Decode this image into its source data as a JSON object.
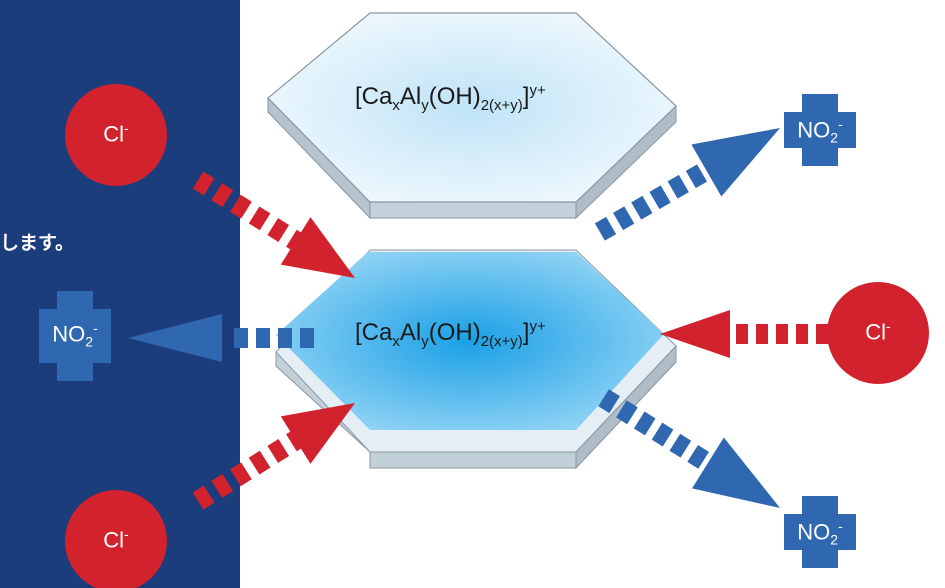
{
  "caption": "します。",
  "layer_top": {
    "formula": {
      "base": "[Ca",
      "x": "x",
      "al": "Al",
      "y": "y",
      "oh": "(OH)",
      "sub2": "2(x+y)",
      "close": "]",
      "charge": "y+"
    }
  },
  "layer_main": {
    "formula": {
      "base": "[Ca",
      "x": "x",
      "al": "Al",
      "y": "y",
      "oh": "(OH)",
      "sub2": "2(x+y)",
      "close": "]",
      "charge": "y+"
    }
  },
  "chloride": {
    "symbol": "Cl",
    "charge": "-"
  },
  "nitrite": {
    "symbol": "NO",
    "sub": "2",
    "charge": "-"
  },
  "colors": {
    "panel": "#1c3d7c",
    "chloride": "#d2222d",
    "nitrite": "#2f68b0",
    "hex_light": "#d9eefa",
    "hex_main": "#2aa8e8"
  }
}
